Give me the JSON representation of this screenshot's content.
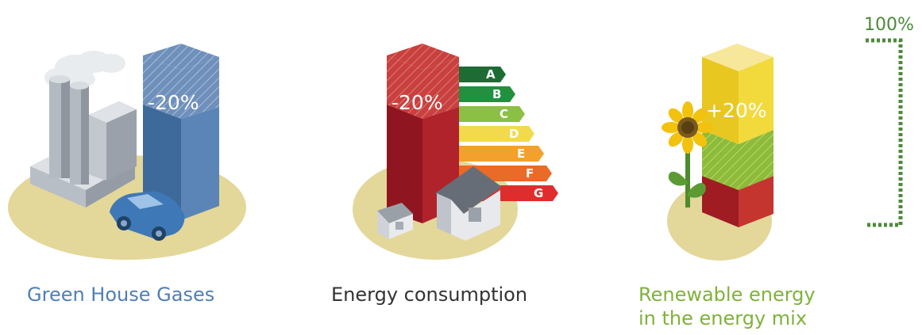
{
  "panels": [
    {
      "title": "Green House Gases",
      "change": "-20%"
    },
    {
      "title": "Energy consumption",
      "change": "-20%"
    },
    {
      "title_line1": "Renewable energy",
      "title_line2": "in the energy mix",
      "change": "+20%"
    }
  ],
  "scale": {
    "top_label": "100%"
  },
  "energy_classes": [
    "A",
    "B",
    "C",
    "D",
    "E",
    "F",
    "G"
  ],
  "colors": {
    "ghg": "#4f7fb4",
    "consumption": "#333333",
    "renewable": "#7fb23a",
    "bracket": "#4c8a3a"
  }
}
